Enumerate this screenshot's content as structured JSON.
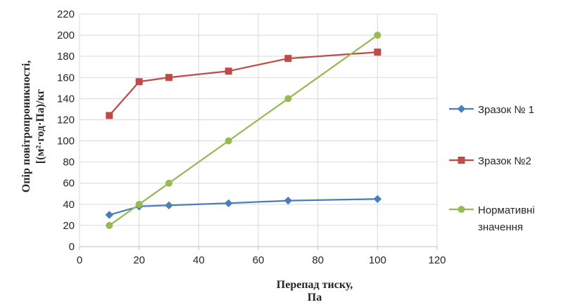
{
  "chart_data": {
    "type": "line",
    "title": "",
    "xlabel": [
      "Перепад тиску,",
      "Па"
    ],
    "ylabel": [
      "Опір повітропроникності,",
      "[(м²·год·Па)/кг"
    ],
    "xlim": [
      0,
      120
    ],
    "ylim": [
      0,
      220
    ],
    "xticks": [
      0,
      20,
      40,
      60,
      80,
      100,
      120
    ],
    "yticks": [
      0,
      20,
      40,
      60,
      80,
      100,
      120,
      140,
      160,
      180,
      200,
      220
    ],
    "grid": "horizontal",
    "legend_position": "right",
    "series": [
      {
        "name": [
          "Зразок № 1"
        ],
        "color": "#4a7ebb",
        "marker": "diamond",
        "x": [
          10,
          20,
          30,
          50,
          70,
          100
        ],
        "y": [
          30,
          38,
          39,
          41,
          43.5,
          45
        ]
      },
      {
        "name": [
          "Зразок №2"
        ],
        "color": "#be4b48",
        "marker": "square",
        "x": [
          10,
          20,
          30,
          50,
          70,
          100
        ],
        "y": [
          124,
          156,
          160,
          166,
          178,
          184
        ]
      },
      {
        "name": [
          "Нормативні",
          "значення"
        ],
        "color": "#98b954",
        "marker": "circle",
        "x": [
          10,
          20,
          30,
          50,
          70,
          100
        ],
        "y": [
          20,
          40,
          60,
          100,
          140,
          200
        ]
      }
    ]
  }
}
